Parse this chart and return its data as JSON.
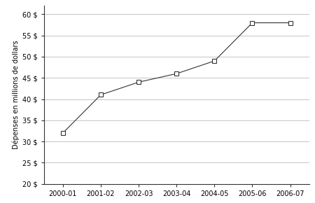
{
  "x_labels": [
    "2000-01",
    "2001-02",
    "2002-03",
    "2003-04",
    "2004-05",
    "2005-06",
    "2006-07"
  ],
  "y_values": [
    32,
    41,
    44,
    46,
    49,
    58,
    58
  ],
  "ylabel": "Dépenses en millions de dollars",
  "ylim": [
    20,
    62
  ],
  "yticks": [
    20,
    25,
    30,
    35,
    40,
    45,
    50,
    55,
    60
  ],
  "ytick_labels": [
    "20 $",
    "25 $",
    "30 $",
    "35 $",
    "40 $",
    "45 $",
    "50 $",
    "55 $",
    "60 $"
  ],
  "line_color": "#333333",
  "marker_style": "s",
  "marker_facecolor": "white",
  "marker_edgecolor": "#333333",
  "marker_size": 4,
  "line_style": "-",
  "line_width": 0.8,
  "grid_color": "#bbbbbb",
  "background_color": "#ffffff",
  "spine_color": "#333333",
  "tick_label_fontsize": 7,
  "ylabel_fontsize": 7
}
